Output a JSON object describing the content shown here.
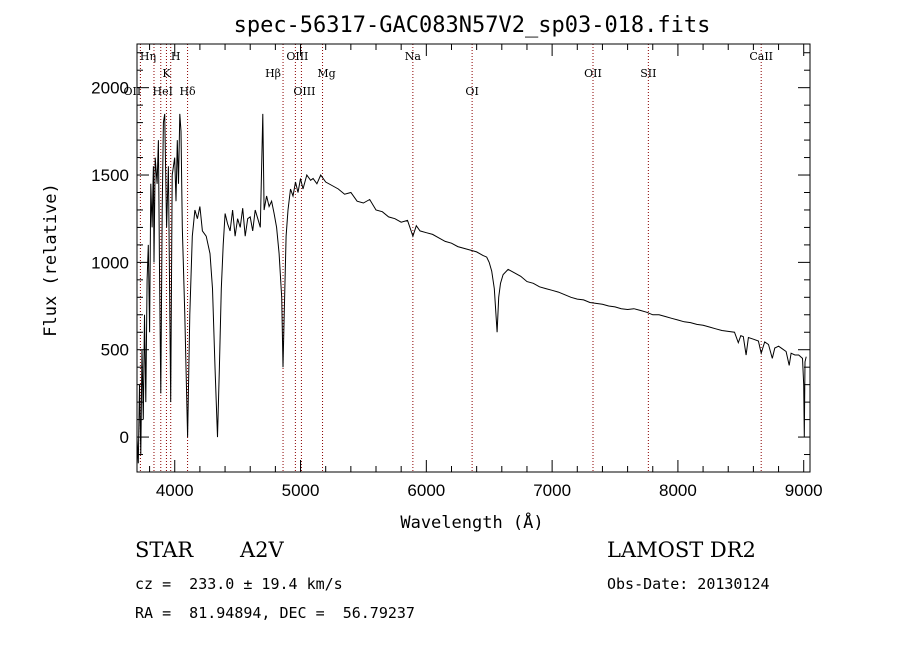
{
  "chart_data": {
    "type": "line",
    "title": "spec-56317-GAC083N57V2_sp03-018.fits",
    "xlabel": "Wavelength (Å)",
    "ylabel": "Flux (relative)",
    "xlim": [
      3700,
      9050
    ],
    "ylim": [
      -200,
      2250
    ],
    "xticks": [
      4000,
      5000,
      6000,
      7000,
      8000,
      9000
    ],
    "yticks": [
      0,
      500,
      1000,
      1500,
      2000
    ],
    "grid": false,
    "line_color": "#000000",
    "marker_color": "#8b0000",
    "spectral_lines": [
      {
        "name": "OII",
        "wavelength": 3727
      },
      {
        "name": "Hη",
        "wavelength": 3835
      },
      {
        "name": "HeI",
        "wavelength": 3889
      },
      {
        "name": "K",
        "wavelength": 3934
      },
      {
        "name": "H",
        "wavelength": 3968
      },
      {
        "name": "Hδ",
        "wavelength": 4102
      },
      {
        "name": "Hβ",
        "wavelength": 4861
      },
      {
        "name": "OIII",
        "wavelength": 4959
      },
      {
        "name": "OIII",
        "wavelength": 5007
      },
      {
        "name": "Mg",
        "wavelength": 5175
      },
      {
        "name": "Na",
        "wavelength": 5893
      },
      {
        "name": "OI",
        "wavelength": 6364
      },
      {
        "name": "OII",
        "wavelength": 7325
      },
      {
        "name": "SII",
        "wavelength": 7765
      },
      {
        "name": "CaII",
        "wavelength": 8662
      }
    ],
    "series": [
      {
        "points": [
          [
            3700,
            0
          ],
          [
            3710,
            -150
          ],
          [
            3720,
            300
          ],
          [
            3730,
            -100
          ],
          [
            3740,
            500
          ],
          [
            3750,
            100
          ],
          [
            3760,
            700
          ],
          [
            3770,
            200
          ],
          [
            3780,
            900
          ],
          [
            3790,
            1100
          ],
          [
            3800,
            600
          ],
          [
            3810,
            1450
          ],
          [
            3820,
            1200
          ],
          [
            3830,
            1550
          ],
          [
            3835,
            1000
          ],
          [
            3845,
            1600
          ],
          [
            3860,
            1450
          ],
          [
            3870,
            1700
          ],
          [
            3880,
            900
          ],
          [
            3889,
            250
          ],
          [
            3900,
            1300
          ],
          [
            3910,
            1800
          ],
          [
            3920,
            1850
          ],
          [
            3935,
            1200
          ],
          [
            3950,
            1550
          ],
          [
            3968,
            200
          ],
          [
            3980,
            1500
          ],
          [
            4000,
            1600
          ],
          [
            4010,
            1350
          ],
          [
            4020,
            1700
          ],
          [
            4030,
            1450
          ],
          [
            4040,
            1850
          ],
          [
            4050,
            1750
          ],
          [
            4060,
            1200
          ],
          [
            4080,
            700
          ],
          [
            4102,
            0
          ],
          [
            4120,
            700
          ],
          [
            4140,
            1150
          ],
          [
            4160,
            1300
          ],
          [
            4180,
            1250
          ],
          [
            4200,
            1320
          ],
          [
            4220,
            1180
          ],
          [
            4250,
            1150
          ],
          [
            4280,
            1050
          ],
          [
            4300,
            850
          ],
          [
            4320,
            400
          ],
          [
            4340,
            0
          ],
          [
            4355,
            400
          ],
          [
            4370,
            850
          ],
          [
            4385,
            1100
          ],
          [
            4400,
            1280
          ],
          [
            4420,
            1220
          ],
          [
            4440,
            1180
          ],
          [
            4460,
            1300
          ],
          [
            4480,
            1150
          ],
          [
            4500,
            1250
          ],
          [
            4520,
            1200
          ],
          [
            4540,
            1310
          ],
          [
            4560,
            1150
          ],
          [
            4580,
            1250
          ],
          [
            4600,
            1260
          ],
          [
            4620,
            1180
          ],
          [
            4640,
            1300
          ],
          [
            4660,
            1250
          ],
          [
            4680,
            1200
          ],
          [
            4700,
            1850
          ],
          [
            4710,
            1300
          ],
          [
            4730,
            1380
          ],
          [
            4750,
            1320
          ],
          [
            4770,
            1350
          ],
          [
            4790,
            1280
          ],
          [
            4810,
            1200
          ],
          [
            4830,
            1050
          ],
          [
            4850,
            800
          ],
          [
            4861,
            400
          ],
          [
            4870,
            700
          ],
          [
            4885,
            1150
          ],
          [
            4900,
            1300
          ],
          [
            4920,
            1420
          ],
          [
            4940,
            1380
          ],
          [
            4960,
            1460
          ],
          [
            4980,
            1400
          ],
          [
            5000,
            1480
          ],
          [
            5020,
            1420
          ],
          [
            5050,
            1500
          ],
          [
            5080,
            1470
          ],
          [
            5100,
            1480
          ],
          [
            5130,
            1450
          ],
          [
            5160,
            1500
          ],
          [
            5200,
            1460
          ],
          [
            5250,
            1440
          ],
          [
            5300,
            1420
          ],
          [
            5350,
            1390
          ],
          [
            5400,
            1400
          ],
          [
            5450,
            1350
          ],
          [
            5500,
            1340
          ],
          [
            5550,
            1360
          ],
          [
            5600,
            1300
          ],
          [
            5650,
            1290
          ],
          [
            5700,
            1260
          ],
          [
            5750,
            1250
          ],
          [
            5800,
            1230
          ],
          [
            5850,
            1240
          ],
          [
            5893,
            1150
          ],
          [
            5920,
            1210
          ],
          [
            5950,
            1180
          ],
          [
            6000,
            1170
          ],
          [
            6050,
            1160
          ],
          [
            6100,
            1140
          ],
          [
            6150,
            1120
          ],
          [
            6200,
            1110
          ],
          [
            6250,
            1090
          ],
          [
            6300,
            1080
          ],
          [
            6350,
            1070
          ],
          [
            6400,
            1060
          ],
          [
            6450,
            1040
          ],
          [
            6480,
            1030
          ],
          [
            6500,
            1000
          ],
          [
            6520,
            950
          ],
          [
            6540,
            850
          ],
          [
            6563,
            600
          ],
          [
            6575,
            800
          ],
          [
            6590,
            880
          ],
          [
            6610,
            930
          ],
          [
            6650,
            960
          ],
          [
            6700,
            940
          ],
          [
            6750,
            920
          ],
          [
            6800,
            890
          ],
          [
            6850,
            880
          ],
          [
            6900,
            860
          ],
          [
            6950,
            850
          ],
          [
            7000,
            840
          ],
          [
            7050,
            830
          ],
          [
            7100,
            815
          ],
          [
            7150,
            800
          ],
          [
            7200,
            790
          ],
          [
            7250,
            785
          ],
          [
            7300,
            770
          ],
          [
            7350,
            765
          ],
          [
            7400,
            760
          ],
          [
            7450,
            750
          ],
          [
            7500,
            745
          ],
          [
            7550,
            735
          ],
          [
            7600,
            730
          ],
          [
            7650,
            735
          ],
          [
            7700,
            725
          ],
          [
            7750,
            715
          ],
          [
            7800,
            700
          ],
          [
            7850,
            700
          ],
          [
            7900,
            690
          ],
          [
            7950,
            680
          ],
          [
            8000,
            670
          ],
          [
            8050,
            660
          ],
          [
            8100,
            655
          ],
          [
            8150,
            645
          ],
          [
            8200,
            640
          ],
          [
            8250,
            630
          ],
          [
            8300,
            620
          ],
          [
            8350,
            610
          ],
          [
            8400,
            605
          ],
          [
            8450,
            600
          ],
          [
            8480,
            540
          ],
          [
            8500,
            580
          ],
          [
            8520,
            575
          ],
          [
            8542,
            470
          ],
          [
            8560,
            570
          ],
          [
            8600,
            560
          ],
          [
            8640,
            550
          ],
          [
            8662,
            480
          ],
          [
            8690,
            545
          ],
          [
            8720,
            530
          ],
          [
            8750,
            450
          ],
          [
            8770,
            510
          ],
          [
            8800,
            520
          ],
          [
            8830,
            505
          ],
          [
            8860,
            490
          ],
          [
            8885,
            410
          ],
          [
            8900,
            480
          ],
          [
            8930,
            470
          ],
          [
            8960,
            470
          ],
          [
            8990,
            450
          ],
          [
            9000,
            300
          ],
          [
            9005,
            0
          ],
          [
            9010,
            430
          ],
          [
            9020,
            460
          ]
        ]
      }
    ]
  },
  "info": {
    "object_type": "STAR",
    "subclass": "A2V",
    "survey": "LAMOST DR2",
    "redshift": "cz =  233.0 ± 19.4 km/s",
    "obs_date": "Obs-Date: 20130124",
    "coords": "RA =  81.94894, DEC =  56.79237"
  }
}
